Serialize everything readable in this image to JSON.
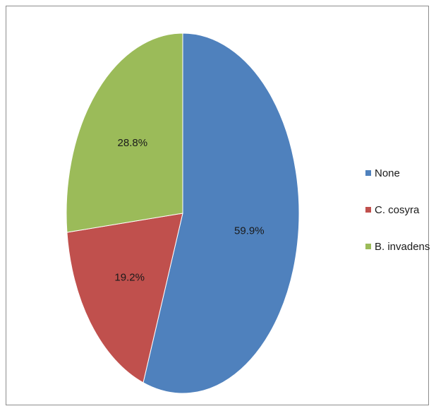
{
  "chart_data": {
    "type": "pie",
    "slices": [
      {
        "label": "None",
        "value": 59.9,
        "value_label": "59.9%",
        "color": "#4f81bd"
      },
      {
        "label": "C. cosyra",
        "value": 19.2,
        "value_label": "19.2%",
        "color": "#c0504d"
      },
      {
        "label": "B. invadens",
        "value": 28.8,
        "value_label": "28.8%",
        "color": "#9bbb59"
      }
    ],
    "start": "top",
    "direction": "clockwise",
    "legend_position": "right"
  }
}
